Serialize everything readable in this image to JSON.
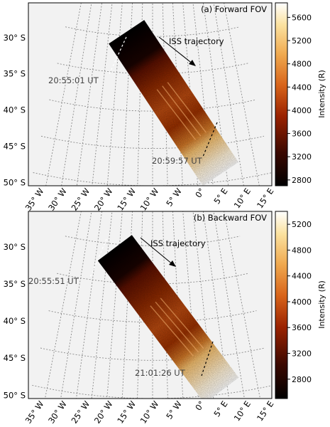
{
  "chart_data": [
    {
      "type": "heatmap",
      "title": "(a) Forward FOV",
      "annotation": "ISS trajectory",
      "time_labels": [
        "20:55:01 UT",
        "20:59:57 UT"
      ],
      "lon_ticks": [
        "35° W",
        "30° W",
        "25° W",
        "20° W",
        "15° W",
        "10° W",
        "5° W",
        "0°",
        "5° E",
        "10° E",
        "15° E"
      ],
      "lat_ticks": [
        "30° S",
        "35° S",
        "40° S",
        "45° S",
        "50° S"
      ],
      "colorbar": {
        "label": "Intensity (R)",
        "range": [
          2700,
          5850
        ],
        "ticks": [
          2800,
          3200,
          3600,
          4000,
          4400,
          4800,
          5200,
          5600
        ]
      },
      "swath": {
        "lon_start": -22,
        "lat_start": -29.5,
        "lon_end": 13,
        "lat_end": -49,
        "dark_lead": 0.18,
        "bright_tail": 0.8
      }
    },
    {
      "type": "heatmap",
      "title": "(b) Backward FOV",
      "annotation": "ISS trajectory",
      "time_labels": [
        "20:55:51 UT",
        "21:01:26 UT"
      ],
      "lon_ticks": [
        "35° W",
        "30° W",
        "25° W",
        "20° W",
        "15° W",
        "10° W",
        "5° W",
        "0°",
        "5° E",
        "10° E",
        "15° E"
      ],
      "lat_ticks": [
        "30° S",
        "35° S",
        "40° S",
        "45° S",
        "50° S"
      ],
      "colorbar": {
        "label": "Intensity (R)",
        "range": [
          2500,
          5400
        ],
        "ticks": [
          2800,
          3200,
          3600,
          4000,
          4400,
          4800,
          5200
        ]
      },
      "swath": {
        "lon_start": -27,
        "lat_start": -30.5,
        "lon_end": 13,
        "lat_end": -49.5,
        "dark_lead": 0.15,
        "bright_tail": 0.78
      }
    }
  ]
}
